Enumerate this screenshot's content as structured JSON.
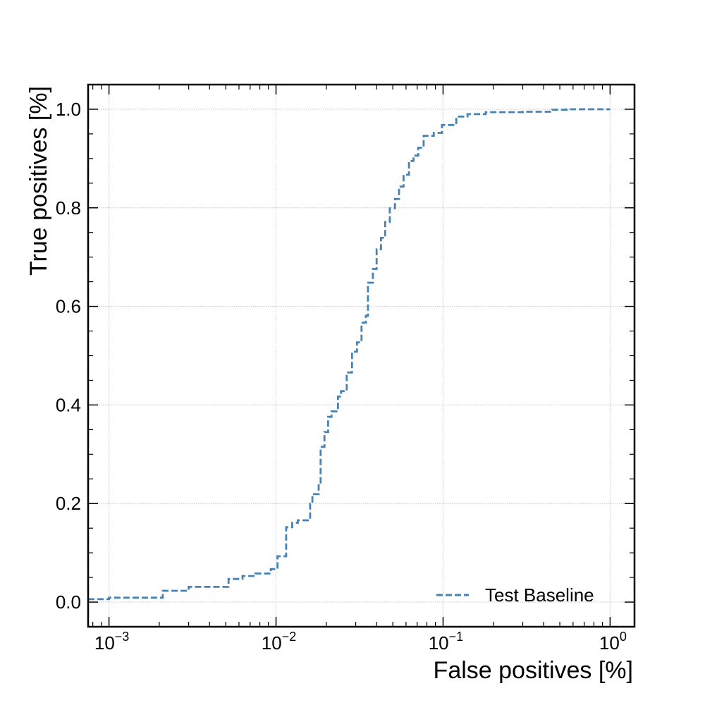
{
  "chart_data": {
    "type": "line",
    "xlabel": "False positives [%]",
    "ylabel": "True positives [%]",
    "x_scale": "log",
    "xlim": [
      0.00075,
      1.4
    ],
    "ylim": [
      -0.05,
      1.05
    ],
    "grid": true,
    "legend_position": "lower-right",
    "x_ticks": [
      {
        "value": 0.001,
        "base": "10",
        "exp": "−3"
      },
      {
        "value": 0.01,
        "base": "10",
        "exp": "−2"
      },
      {
        "value": 0.1,
        "base": "10",
        "exp": "−1"
      },
      {
        "value": 1,
        "base": "10",
        "exp": "0"
      }
    ],
    "y_ticks": [
      {
        "value": 0,
        "label": "0.0"
      },
      {
        "value": 0.2,
        "label": "0.2"
      },
      {
        "value": 0.4,
        "label": "0.4"
      },
      {
        "value": 0.6,
        "label": "0.6"
      },
      {
        "value": 0.8,
        "label": "0.8"
      },
      {
        "value": 1.0,
        "label": "1.0"
      }
    ],
    "series": [
      {
        "name": "Test Baseline",
        "color": "#4682b4",
        "dash": "dashed",
        "drawstyle": "steps-post",
        "points": [
          [
            0.00075,
            0.006
          ],
          [
            0.001,
            0.009
          ],
          [
            0.0021,
            0.023
          ],
          [
            0.003,
            0.031
          ],
          [
            0.0052,
            0.047
          ],
          [
            0.0063,
            0.053
          ],
          [
            0.0075,
            0.058
          ],
          [
            0.0093,
            0.067
          ],
          [
            0.0102,
            0.093
          ],
          [
            0.0115,
            0.152
          ],
          [
            0.0125,
            0.161
          ],
          [
            0.0135,
            0.166
          ],
          [
            0.016,
            0.199
          ],
          [
            0.0165,
            0.219
          ],
          [
            0.018,
            0.24
          ],
          [
            0.0185,
            0.315
          ],
          [
            0.0195,
            0.345
          ],
          [
            0.0205,
            0.376
          ],
          [
            0.0215,
            0.387
          ],
          [
            0.0235,
            0.417
          ],
          [
            0.0245,
            0.428
          ],
          [
            0.0265,
            0.466
          ],
          [
            0.0285,
            0.508
          ],
          [
            0.0305,
            0.527
          ],
          [
            0.0325,
            0.567
          ],
          [
            0.0345,
            0.581
          ],
          [
            0.0355,
            0.648
          ],
          [
            0.038,
            0.676
          ],
          [
            0.04,
            0.716
          ],
          [
            0.0425,
            0.739
          ],
          [
            0.045,
            0.771
          ],
          [
            0.048,
            0.799
          ],
          [
            0.0515,
            0.818
          ],
          [
            0.0545,
            0.843
          ],
          [
            0.058,
            0.867
          ],
          [
            0.0625,
            0.895
          ],
          [
            0.0665,
            0.906
          ],
          [
            0.071,
            0.922
          ],
          [
            0.0765,
            0.946
          ],
          [
            0.088,
            0.952
          ],
          [
            0.0985,
            0.968
          ],
          [
            0.12,
            0.985
          ],
          [
            0.14,
            0.99
          ],
          [
            0.18,
            0.994
          ],
          [
            0.3,
            0.995
          ],
          [
            0.45,
            0.999
          ],
          [
            0.55,
            1.0
          ],
          [
            1.0,
            1.0
          ]
        ]
      }
    ]
  }
}
